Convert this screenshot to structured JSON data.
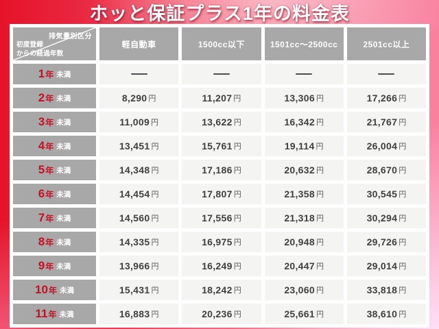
{
  "title": "ホッと保証プラス1年の料金表",
  "table": {
    "corner": {
      "top_right": "排気量別区分",
      "bottom_left_line1": "初度登録",
      "bottom_left_line2": "からの経過年数"
    },
    "columns": [
      "軽自動車",
      "1500cc以下",
      "1501cc〜2500cc",
      "2501cc以上"
    ],
    "year_unit": "年",
    "qualifier": "未満",
    "currency": "円",
    "dash": "—",
    "rows": [
      {
        "years": "1",
        "values": [
          "—",
          "—",
          "—",
          "—"
        ]
      },
      {
        "years": "2",
        "values": [
          "8,290",
          "11,207",
          "13,306",
          "17,266"
        ]
      },
      {
        "years": "3",
        "values": [
          "11,009",
          "13,622",
          "16,342",
          "21,767"
        ]
      },
      {
        "years": "4",
        "values": [
          "13,451",
          "15,761",
          "19,114",
          "26,004"
        ]
      },
      {
        "years": "5",
        "values": [
          "14,348",
          "17,186",
          "20,632",
          "28,670"
        ]
      },
      {
        "years": "6",
        "values": [
          "14,454",
          "17,807",
          "21,358",
          "30,545"
        ]
      },
      {
        "years": "7",
        "values": [
          "14,560",
          "17,556",
          "21,318",
          "30,294"
        ]
      },
      {
        "years": "8",
        "values": [
          "14,335",
          "16,975",
          "20,948",
          "29,726"
        ]
      },
      {
        "years": "9",
        "values": [
          "13,966",
          "16,249",
          "20,447",
          "29,014"
        ]
      },
      {
        "years": "10",
        "values": [
          "15,431",
          "18,242",
          "23,060",
          "33,818"
        ]
      },
      {
        "years": "11",
        "values": [
          "16,883",
          "20,236",
          "25,661",
          "38,610"
        ]
      }
    ]
  },
  "chart_data": {
    "type": "table",
    "title": "ホッと保証プラス1年の料金表",
    "row_header_label": "初度登録からの経過年数",
    "column_header_label": "排気量別区分",
    "categories": [
      "1年未満",
      "2年未満",
      "3年未満",
      "4年未満",
      "5年未満",
      "6年未満",
      "7年未満",
      "8年未満",
      "9年未満",
      "10年未満",
      "11年未満"
    ],
    "series": [
      {
        "name": "軽自動車",
        "values": [
          null,
          8290,
          11009,
          13451,
          14348,
          14454,
          14560,
          14335,
          13966,
          15431,
          16883
        ]
      },
      {
        "name": "1500cc以下",
        "values": [
          null,
          11207,
          13622,
          15761,
          17186,
          17807,
          17556,
          16975,
          16249,
          18242,
          20236
        ]
      },
      {
        "name": "1501cc〜2500cc",
        "values": [
          null,
          13306,
          16342,
          19114,
          20632,
          21358,
          21318,
          20948,
          20447,
          23060,
          25661
        ]
      },
      {
        "name": "2501cc以上",
        "values": [
          null,
          17266,
          21767,
          26004,
          28670,
          30545,
          30294,
          29726,
          29014,
          33818,
          38610
        ]
      }
    ],
    "unit": "円"
  },
  "colors": {
    "accent_red": "#e6142b",
    "accent_pink": "#f87e9a",
    "header_gray": "#a8a8a8",
    "cell_bg": "#f4f4f2",
    "label_red": "#c60f23",
    "value_text": "#3f3f3f"
  }
}
